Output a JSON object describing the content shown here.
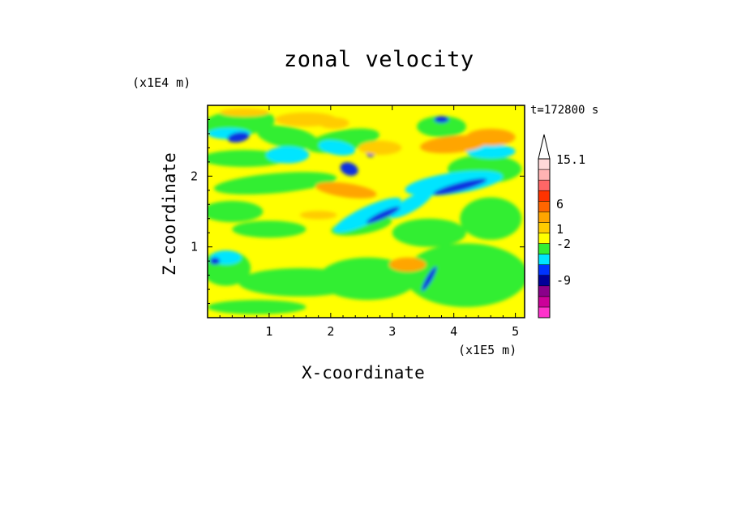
{
  "chart_data": {
    "type": "heatmap",
    "title": "zonal velocity",
    "time_label": "t=172800 s",
    "xlabel": "X-coordinate",
    "ylabel": "Z-coordinate",
    "x_unit": "(x1E5 m)",
    "y_unit": "(x1E4 m)",
    "xlim": [
      0,
      5.15
    ],
    "ylim": [
      0,
      3.0
    ],
    "x_ticks": [
      "1",
      "2",
      "3",
      "4",
      "5"
    ],
    "y_ticks": [
      "1",
      "2"
    ],
    "colorbar": {
      "tick_labels": [
        "15.1",
        "6",
        "1",
        "-2",
        "-9"
      ],
      "colors": [
        "#ff33cc",
        "#cc0099",
        "#8a008a",
        "#000099",
        "#0033ff",
        "#00e5ff",
        "#33ee33",
        "#ffff00",
        "#ffcc00",
        "#ffa500",
        "#ff6600",
        "#ff3300",
        "#ff6666",
        "#ffb3b3",
        "#ffd8d8"
      ]
    },
    "field_description_colors": {
      "background": "#ffff00",
      "green": "#33ee33",
      "cyan": "#00e5ff",
      "blue": "#1030e0",
      "orange": "#ffa500",
      "light_orange": "#ffcc00"
    }
  }
}
